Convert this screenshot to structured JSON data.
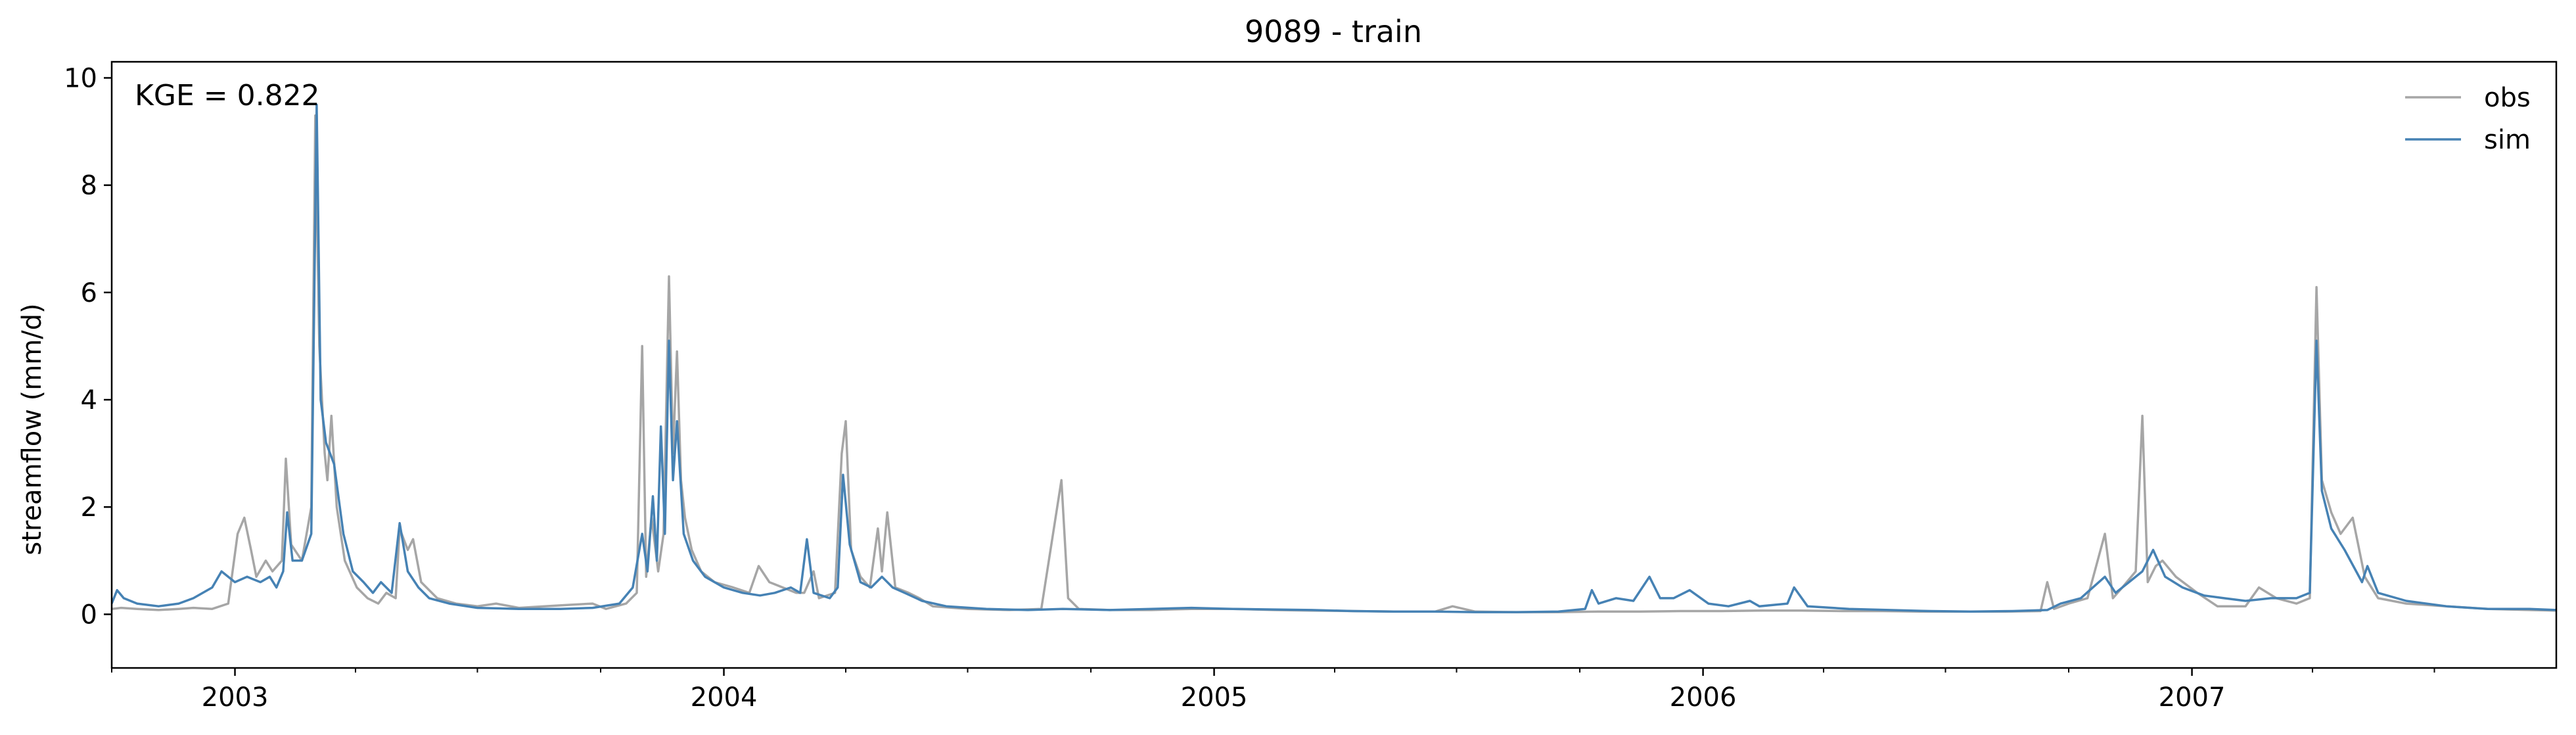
{
  "chart_data": {
    "type": "line",
    "title": "9089 - train",
    "xlabel": "",
    "ylabel": "streamflow (mm/d)",
    "annotation": "KGE = 0.822",
    "x_range": [
      "2002-10-01",
      "2007-09-30"
    ],
    "ylim": [
      -1,
      10.3
    ],
    "y_ticks": [
      0,
      2,
      4,
      6,
      8,
      10
    ],
    "x_ticks": [
      {
        "label": "2003",
        "date": "2003-01-01"
      },
      {
        "label": "2004",
        "date": "2004-01-01"
      },
      {
        "label": "2005",
        "date": "2005-01-01"
      },
      {
        "label": "2006",
        "date": "2006-01-01"
      },
      {
        "label": "2007",
        "date": "2007-01-01"
      }
    ],
    "minor_ticks": "quarterly",
    "grid": false,
    "legend_position": "top-right",
    "series": [
      {
        "name": "obs",
        "color": "#a6a6a6",
        "points": [
          [
            "2002-10-01",
            0.1
          ],
          [
            "2002-10-08",
            0.12
          ],
          [
            "2002-10-20",
            0.1
          ],
          [
            "2002-11-05",
            0.08
          ],
          [
            "2002-11-20",
            0.1
          ],
          [
            "2002-12-01",
            0.12
          ],
          [
            "2002-12-15",
            0.1
          ],
          [
            "2002-12-27",
            0.2
          ],
          [
            "2003-01-03",
            1.5
          ],
          [
            "2003-01-08",
            1.8
          ],
          [
            "2003-01-13",
            1.2
          ],
          [
            "2003-01-17",
            0.7
          ],
          [
            "2003-01-24",
            1.0
          ],
          [
            "2003-01-29",
            0.8
          ],
          [
            "2003-02-05",
            1.0
          ],
          [
            "2003-02-08",
            2.9
          ],
          [
            "2003-02-12",
            1.3
          ],
          [
            "2003-02-20",
            1.0
          ],
          [
            "2003-02-27",
            2.0
          ],
          [
            "2003-03-02",
            9.3
          ],
          [
            "2003-03-05",
            5.0
          ],
          [
            "2003-03-09",
            3.0
          ],
          [
            "2003-03-11",
            2.5
          ],
          [
            "2003-03-14",
            3.7
          ],
          [
            "2003-03-18",
            2.0
          ],
          [
            "2003-03-24",
            1.0
          ],
          [
            "2003-04-02",
            0.5
          ],
          [
            "2003-04-10",
            0.3
          ],
          [
            "2003-04-18",
            0.2
          ],
          [
            "2003-04-24",
            0.4
          ],
          [
            "2003-05-01",
            0.3
          ],
          [
            "2003-05-04",
            1.6
          ],
          [
            "2003-05-10",
            1.2
          ],
          [
            "2003-05-14",
            1.4
          ],
          [
            "2003-05-20",
            0.6
          ],
          [
            "2003-06-01",
            0.3
          ],
          [
            "2003-06-15",
            0.2
          ],
          [
            "2003-07-01",
            0.15
          ],
          [
            "2003-07-15",
            0.2
          ],
          [
            "2003-08-01",
            0.12
          ],
          [
            "2003-08-20",
            0.15
          ],
          [
            "2003-09-10",
            0.18
          ],
          [
            "2003-09-25",
            0.2
          ],
          [
            "2003-10-05",
            0.1
          ],
          [
            "2003-10-20",
            0.2
          ],
          [
            "2003-10-28",
            0.4
          ],
          [
            "2003-11-01",
            5.0
          ],
          [
            "2003-11-04",
            0.7
          ],
          [
            "2003-11-08",
            1.8
          ],
          [
            "2003-11-13",
            0.8
          ],
          [
            "2003-11-17",
            1.5
          ],
          [
            "2003-11-21",
            6.3
          ],
          [
            "2003-11-24",
            3.0
          ],
          [
            "2003-11-27",
            4.9
          ],
          [
            "2003-11-30",
            2.5
          ],
          [
            "2003-12-03",
            1.8
          ],
          [
            "2003-12-08",
            1.2
          ],
          [
            "2003-12-15",
            0.8
          ],
          [
            "2003-12-25",
            0.6
          ],
          [
            "2004-01-08",
            0.5
          ],
          [
            "2004-01-20",
            0.4
          ],
          [
            "2004-01-27",
            0.9
          ],
          [
            "2004-02-04",
            0.6
          ],
          [
            "2004-02-14",
            0.5
          ],
          [
            "2004-02-24",
            0.4
          ],
          [
            "2004-03-01",
            0.4
          ],
          [
            "2004-03-08",
            0.8
          ],
          [
            "2004-03-12",
            0.3
          ],
          [
            "2004-03-24",
            0.4
          ],
          [
            "2004-03-29",
            3.0
          ],
          [
            "2004-04-01",
            3.6
          ],
          [
            "2004-04-05",
            1.2
          ],
          [
            "2004-04-12",
            0.7
          ],
          [
            "2004-04-19",
            0.5
          ],
          [
            "2004-04-25",
            1.6
          ],
          [
            "2004-04-28",
            0.8
          ],
          [
            "2004-05-02",
            1.9
          ],
          [
            "2004-05-08",
            0.5
          ],
          [
            "2004-05-18",
            0.4
          ],
          [
            "2004-05-26",
            0.3
          ],
          [
            "2004-06-05",
            0.15
          ],
          [
            "2004-07-01",
            0.1
          ],
          [
            "2004-08-01",
            0.08
          ],
          [
            "2004-08-25",
            0.1
          ],
          [
            "2004-09-09",
            2.5
          ],
          [
            "2004-09-14",
            0.3
          ],
          [
            "2004-09-22",
            0.1
          ],
          [
            "2004-10-15",
            0.08
          ],
          [
            "2004-11-15",
            0.08
          ],
          [
            "2004-12-15",
            0.1
          ],
          [
            "2005-01-15",
            0.1
          ],
          [
            "2005-02-15",
            0.08
          ],
          [
            "2005-03-15",
            0.07
          ],
          [
            "2005-04-15",
            0.06
          ],
          [
            "2005-05-15",
            0.05
          ],
          [
            "2005-06-15",
            0.05
          ],
          [
            "2005-06-28",
            0.15
          ],
          [
            "2005-07-15",
            0.05
          ],
          [
            "2005-08-15",
            0.04
          ],
          [
            "2005-09-15",
            0.04
          ],
          [
            "2005-10-15",
            0.05
          ],
          [
            "2005-11-15",
            0.05
          ],
          [
            "2005-12-15",
            0.06
          ],
          [
            "2006-01-15",
            0.06
          ],
          [
            "2006-02-15",
            0.07
          ],
          [
            "2006-03-15",
            0.07
          ],
          [
            "2006-04-15",
            0.06
          ],
          [
            "2006-05-15",
            0.06
          ],
          [
            "2006-06-15",
            0.05
          ],
          [
            "2006-07-15",
            0.05
          ],
          [
            "2006-08-15",
            0.05
          ],
          [
            "2006-09-10",
            0.06
          ],
          [
            "2006-09-15",
            0.6
          ],
          [
            "2006-09-20",
            0.1
          ],
          [
            "2006-10-01",
            0.2
          ],
          [
            "2006-10-15",
            0.3
          ],
          [
            "2006-10-28",
            1.5
          ],
          [
            "2006-11-03",
            0.3
          ],
          [
            "2006-11-10",
            0.5
          ],
          [
            "2006-11-20",
            0.8
          ],
          [
            "2006-11-25",
            3.7
          ],
          [
            "2006-11-29",
            0.6
          ],
          [
            "2006-12-05",
            0.9
          ],
          [
            "2006-12-10",
            1.0
          ],
          [
            "2006-12-20",
            0.7
          ],
          [
            "2007-01-05",
            0.4
          ],
          [
            "2007-01-20",
            0.15
          ],
          [
            "2007-02-10",
            0.15
          ],
          [
            "2007-02-20",
            0.5
          ],
          [
            "2007-03-05",
            0.3
          ],
          [
            "2007-03-20",
            0.2
          ],
          [
            "2007-03-30",
            0.3
          ],
          [
            "2007-04-04",
            6.1
          ],
          [
            "2007-04-08",
            2.5
          ],
          [
            "2007-04-15",
            1.9
          ],
          [
            "2007-04-22",
            1.5
          ],
          [
            "2007-05-01",
            1.8
          ],
          [
            "2007-05-10",
            0.7
          ],
          [
            "2007-05-20",
            0.3
          ],
          [
            "2007-06-10",
            0.2
          ],
          [
            "2007-07-10",
            0.15
          ],
          [
            "2007-08-10",
            0.1
          ],
          [
            "2007-09-10",
            0.08
          ],
          [
            "2007-09-30",
            0.07
          ]
        ]
      },
      {
        "name": "sim",
        "color": "#4682b4",
        "points": [
          [
            "2002-10-01",
            0.2
          ],
          [
            "2002-10-05",
            0.45
          ],
          [
            "2002-10-10",
            0.3
          ],
          [
            "2002-10-20",
            0.2
          ],
          [
            "2002-11-05",
            0.15
          ],
          [
            "2002-11-20",
            0.2
          ],
          [
            "2002-12-01",
            0.3
          ],
          [
            "2002-12-15",
            0.5
          ],
          [
            "2002-12-22",
            0.8
          ],
          [
            "2003-01-01",
            0.6
          ],
          [
            "2003-01-10",
            0.7
          ],
          [
            "2003-01-20",
            0.6
          ],
          [
            "2003-01-27",
            0.7
          ],
          [
            "2003-02-01",
            0.5
          ],
          [
            "2003-02-06",
            0.8
          ],
          [
            "2003-02-09",
            1.9
          ],
          [
            "2003-02-13",
            1.0
          ],
          [
            "2003-02-20",
            1.0
          ],
          [
            "2003-02-27",
            1.5
          ],
          [
            "2003-03-03",
            9.5
          ],
          [
            "2003-03-06",
            4.0
          ],
          [
            "2003-03-10",
            3.2
          ],
          [
            "2003-03-16",
            2.8
          ],
          [
            "2003-03-23",
            1.5
          ],
          [
            "2003-03-30",
            0.8
          ],
          [
            "2003-04-07",
            0.6
          ],
          [
            "2003-04-14",
            0.4
          ],
          [
            "2003-04-20",
            0.6
          ],
          [
            "2003-04-28",
            0.4
          ],
          [
            "2003-05-04",
            1.7
          ],
          [
            "2003-05-10",
            0.8
          ],
          [
            "2003-05-18",
            0.5
          ],
          [
            "2003-05-26",
            0.3
          ],
          [
            "2003-06-10",
            0.2
          ],
          [
            "2003-07-01",
            0.12
          ],
          [
            "2003-08-01",
            0.1
          ],
          [
            "2003-09-01",
            0.1
          ],
          [
            "2003-09-25",
            0.12
          ],
          [
            "2003-10-15",
            0.2
          ],
          [
            "2003-10-25",
            0.5
          ],
          [
            "2003-11-01",
            1.5
          ],
          [
            "2003-11-05",
            0.8
          ],
          [
            "2003-11-09",
            2.2
          ],
          [
            "2003-11-12",
            1.0
          ],
          [
            "2003-11-15",
            3.5
          ],
          [
            "2003-11-18",
            1.5
          ],
          [
            "2003-11-21",
            5.1
          ],
          [
            "2003-11-24",
            2.5
          ],
          [
            "2003-11-27",
            3.6
          ],
          [
            "2003-12-02",
            1.5
          ],
          [
            "2003-12-09",
            1.0
          ],
          [
            "2003-12-18",
            0.7
          ],
          [
            "2004-01-01",
            0.5
          ],
          [
            "2004-01-15",
            0.4
          ],
          [
            "2004-01-28",
            0.35
          ],
          [
            "2004-02-08",
            0.4
          ],
          [
            "2004-02-20",
            0.5
          ],
          [
            "2004-02-27",
            0.4
          ],
          [
            "2004-03-03",
            1.4
          ],
          [
            "2004-03-08",
            0.4
          ],
          [
            "2004-03-20",
            0.3
          ],
          [
            "2004-03-26",
            0.5
          ],
          [
            "2004-03-30",
            2.6
          ],
          [
            "2004-04-04",
            1.3
          ],
          [
            "2004-04-12",
            0.6
          ],
          [
            "2004-04-20",
            0.5
          ],
          [
            "2004-04-28",
            0.7
          ],
          [
            "2004-05-06",
            0.5
          ],
          [
            "2004-05-15",
            0.4
          ],
          [
            "2004-05-28",
            0.25
          ],
          [
            "2004-06-15",
            0.15
          ],
          [
            "2004-07-15",
            0.1
          ],
          [
            "2004-08-15",
            0.08
          ],
          [
            "2004-09-10",
            0.1
          ],
          [
            "2004-10-15",
            0.08
          ],
          [
            "2004-11-15",
            0.1
          ],
          [
            "2004-12-15",
            0.12
          ],
          [
            "2005-01-15",
            0.1
          ],
          [
            "2005-02-15",
            0.09
          ],
          [
            "2005-03-15",
            0.08
          ],
          [
            "2005-04-15",
            0.06
          ],
          [
            "2005-05-15",
            0.05
          ],
          [
            "2005-06-15",
            0.05
          ],
          [
            "2005-07-15",
            0.04
          ],
          [
            "2005-08-15",
            0.04
          ],
          [
            "2005-09-15",
            0.05
          ],
          [
            "2005-10-05",
            0.1
          ],
          [
            "2005-10-10",
            0.45
          ],
          [
            "2005-10-15",
            0.2
          ],
          [
            "2005-10-28",
            0.3
          ],
          [
            "2005-11-10",
            0.25
          ],
          [
            "2005-11-22",
            0.7
          ],
          [
            "2005-11-30",
            0.3
          ],
          [
            "2005-12-10",
            0.3
          ],
          [
            "2005-12-22",
            0.45
          ],
          [
            "2006-01-05",
            0.2
          ],
          [
            "2006-01-20",
            0.15
          ],
          [
            "2006-02-05",
            0.25
          ],
          [
            "2006-02-12",
            0.15
          ],
          [
            "2006-03-05",
            0.2
          ],
          [
            "2006-03-10",
            0.5
          ],
          [
            "2006-03-20",
            0.15
          ],
          [
            "2006-04-20",
            0.1
          ],
          [
            "2006-05-20",
            0.08
          ],
          [
            "2006-06-20",
            0.06
          ],
          [
            "2006-07-20",
            0.05
          ],
          [
            "2006-08-20",
            0.06
          ],
          [
            "2006-09-15",
            0.08
          ],
          [
            "2006-09-25",
            0.2
          ],
          [
            "2006-10-10",
            0.3
          ],
          [
            "2006-10-28",
            0.7
          ],
          [
            "2006-11-05",
            0.4
          ],
          [
            "2006-11-15",
            0.6
          ],
          [
            "2006-11-25",
            0.8
          ],
          [
            "2006-12-03",
            1.2
          ],
          [
            "2006-12-12",
            0.7
          ],
          [
            "2006-12-25",
            0.5
          ],
          [
            "2007-01-10",
            0.35
          ],
          [
            "2007-01-25",
            0.3
          ],
          [
            "2007-02-10",
            0.25
          ],
          [
            "2007-03-01",
            0.3
          ],
          [
            "2007-03-20",
            0.3
          ],
          [
            "2007-03-30",
            0.4
          ],
          [
            "2007-04-04",
            5.1
          ],
          [
            "2007-04-08",
            2.3
          ],
          [
            "2007-04-15",
            1.6
          ],
          [
            "2007-04-25",
            1.2
          ],
          [
            "2007-05-08",
            0.6
          ],
          [
            "2007-05-12",
            0.9
          ],
          [
            "2007-05-20",
            0.4
          ],
          [
            "2007-06-10",
            0.25
          ],
          [
            "2007-07-10",
            0.15
          ],
          [
            "2007-08-10",
            0.1
          ],
          [
            "2007-09-10",
            0.1
          ],
          [
            "2007-09-30",
            0.08
          ]
        ]
      }
    ]
  }
}
